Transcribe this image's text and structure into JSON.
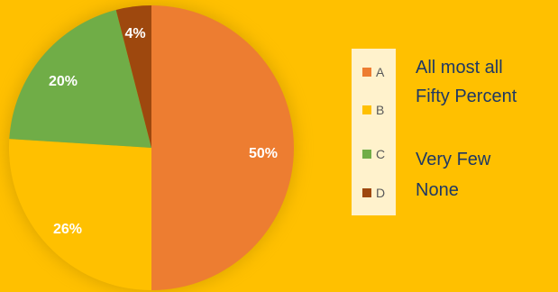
{
  "chart_data": {
    "type": "pie",
    "title": "",
    "categories": [
      "A",
      "B",
      "C",
      "D"
    ],
    "values": [
      50,
      26,
      20,
      4
    ],
    "data_labels": [
      "50%",
      "26%",
      "20%",
      "4%"
    ],
    "colors": [
      "#ED7D31",
      "#FFC000",
      "#70AD47",
      "#9E480E"
    ],
    "legend": {
      "placement": "right",
      "entries": [
        "A",
        "B",
        "C",
        "D"
      ]
    },
    "annotations": [
      "All most all",
      "Fifty Percent",
      "Very Few",
      "None"
    ]
  },
  "page": {
    "background": "#FFC000",
    "legend_background": "#FFF2CC"
  }
}
